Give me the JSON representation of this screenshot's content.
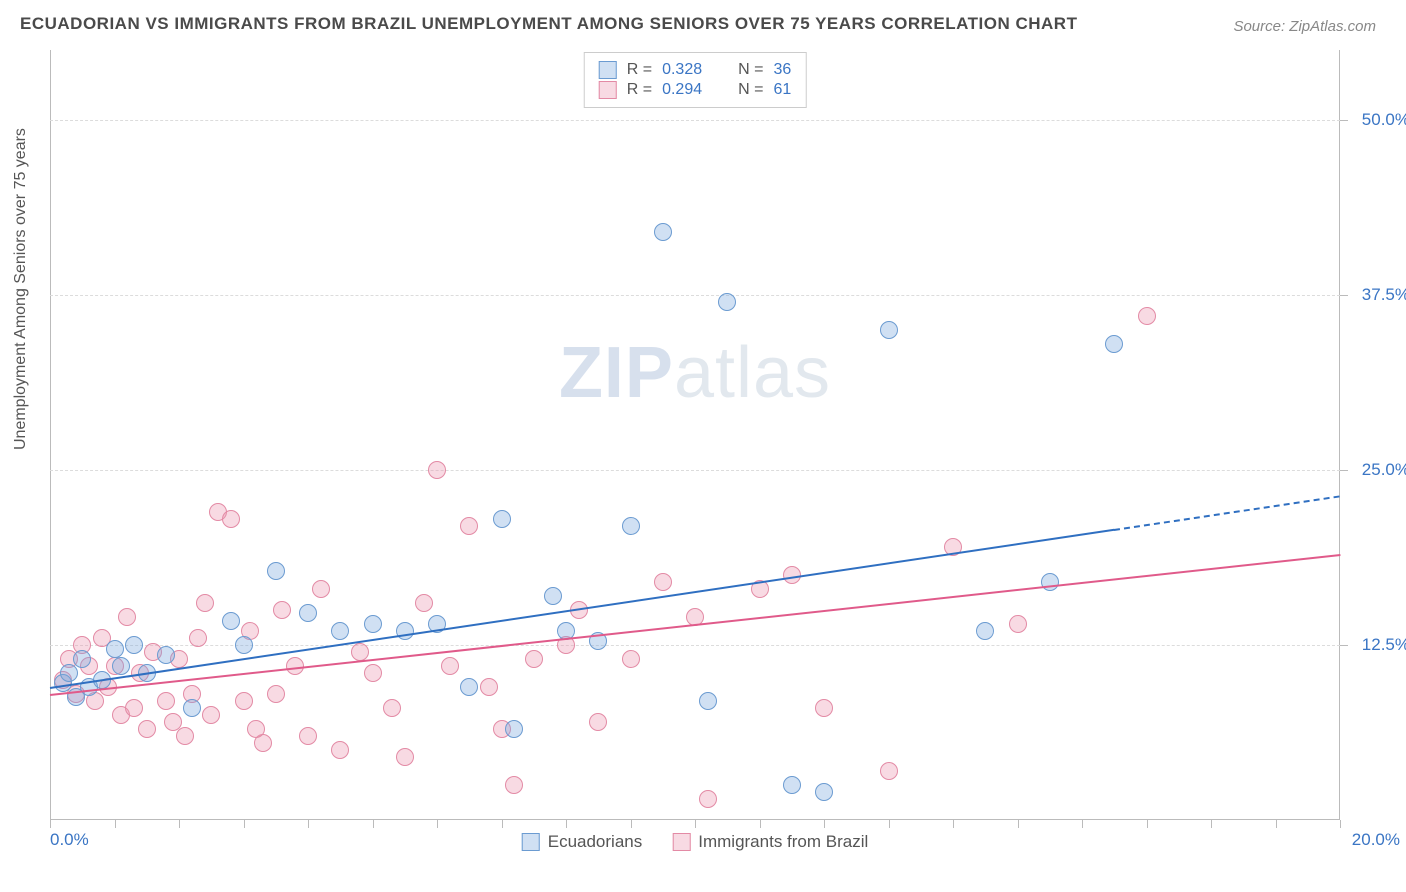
{
  "title": "ECUADORIAN VS IMMIGRANTS FROM BRAZIL UNEMPLOYMENT AMONG SENIORS OVER 75 YEARS CORRELATION CHART",
  "source": "Source: ZipAtlas.com",
  "ylabel": "Unemployment Among Seniors over 75 years",
  "watermark_a": "ZIP",
  "watermark_b": "atlas",
  "chart": {
    "type": "scatter",
    "xlim": [
      0,
      20
    ],
    "ylim": [
      0,
      55
    ],
    "x_origin_label": "0.0%",
    "x_end_label": "20.0%",
    "y_ticks": [
      12.5,
      25.0,
      37.5,
      50.0
    ],
    "y_tick_labels": [
      "12.5%",
      "25.0%",
      "37.5%",
      "50.0%"
    ],
    "x_minor_ticks": [
      0,
      1,
      2,
      3,
      4,
      5,
      6,
      7,
      8,
      9,
      10,
      11,
      12,
      13,
      14,
      15,
      16,
      17,
      18,
      19,
      20
    ],
    "grid_color": "#dcdcdc",
    "axis_color": "#bbbbbb",
    "background_color": "#ffffff",
    "series": [
      {
        "name": "Ecuadorians",
        "label": "Ecuadorians",
        "fill": "rgba(120,165,220,0.35)",
        "stroke": "#6b9bd1",
        "line_color": "#2f6fc1",
        "marker_radius": 9,
        "R": "0.328",
        "N": "36",
        "trend": {
          "x1": 0,
          "y1": 9.5,
          "x2": 16.5,
          "y2": 20.8,
          "x2_dash": 20,
          "y2_dash": 23.2
        },
        "points": [
          [
            0.2,
            9.8
          ],
          [
            0.3,
            10.5
          ],
          [
            0.4,
            8.8
          ],
          [
            0.5,
            11.5
          ],
          [
            0.6,
            9.5
          ],
          [
            0.8,
            10.0
          ],
          [
            1.0,
            12.2
          ],
          [
            1.1,
            11.0
          ],
          [
            1.3,
            12.5
          ],
          [
            1.5,
            10.5
          ],
          [
            1.8,
            11.8
          ],
          [
            2.2,
            8.0
          ],
          [
            2.8,
            14.2
          ],
          [
            3.0,
            12.5
          ],
          [
            3.5,
            17.8
          ],
          [
            4.0,
            14.8
          ],
          [
            4.5,
            13.5
          ],
          [
            5.0,
            14.0
          ],
          [
            5.5,
            13.5
          ],
          [
            6.0,
            14.0
          ],
          [
            6.5,
            9.5
          ],
          [
            7.0,
            21.5
          ],
          [
            7.2,
            6.5
          ],
          [
            7.8,
            16.0
          ],
          [
            8.0,
            13.5
          ],
          [
            8.5,
            12.8
          ],
          [
            9.0,
            21.0
          ],
          [
            9.5,
            42.0
          ],
          [
            10.2,
            8.5
          ],
          [
            10.5,
            37.0
          ],
          [
            12.0,
            2.0
          ],
          [
            13.0,
            35.0
          ],
          [
            14.5,
            13.5
          ],
          [
            15.5,
            17.0
          ],
          [
            16.5,
            34.0
          ],
          [
            11.5,
            2.5
          ]
        ]
      },
      {
        "name": "Immigrants from Brazil",
        "label": "Immigrants from Brazil",
        "fill": "rgba(235,150,175,0.35)",
        "stroke": "#e38aa5",
        "line_color": "#e05a8a",
        "marker_radius": 9,
        "R": "0.294",
        "N": "61",
        "trend": {
          "x1": 0,
          "y1": 9.0,
          "x2": 20,
          "y2": 19.0
        },
        "points": [
          [
            0.2,
            10.0
          ],
          [
            0.3,
            11.5
          ],
          [
            0.4,
            9.0
          ],
          [
            0.5,
            12.5
          ],
          [
            0.6,
            11.0
          ],
          [
            0.7,
            8.5
          ],
          [
            0.8,
            13.0
          ],
          [
            0.9,
            9.5
          ],
          [
            1.0,
            11.0
          ],
          [
            1.1,
            7.5
          ],
          [
            1.2,
            14.5
          ],
          [
            1.3,
            8.0
          ],
          [
            1.4,
            10.5
          ],
          [
            1.5,
            6.5
          ],
          [
            1.6,
            12.0
          ],
          [
            1.8,
            8.5
          ],
          [
            1.9,
            7.0
          ],
          [
            2.0,
            11.5
          ],
          [
            2.1,
            6.0
          ],
          [
            2.2,
            9.0
          ],
          [
            2.4,
            15.5
          ],
          [
            2.5,
            7.5
          ],
          [
            2.6,
            22.0
          ],
          [
            2.8,
            21.5
          ],
          [
            3.0,
            8.5
          ],
          [
            3.1,
            13.5
          ],
          [
            3.3,
            5.5
          ],
          [
            3.5,
            9.0
          ],
          [
            3.6,
            15.0
          ],
          [
            3.8,
            11.0
          ],
          [
            4.0,
            6.0
          ],
          [
            4.2,
            16.5
          ],
          [
            4.5,
            5.0
          ],
          [
            4.8,
            12.0
          ],
          [
            5.0,
            10.5
          ],
          [
            5.3,
            8.0
          ],
          [
            5.5,
            4.5
          ],
          [
            5.8,
            15.5
          ],
          [
            6.0,
            25.0
          ],
          [
            6.2,
            11.0
          ],
          [
            6.5,
            21.0
          ],
          [
            6.8,
            9.5
          ],
          [
            7.0,
            6.5
          ],
          [
            7.2,
            2.5
          ],
          [
            7.5,
            11.5
          ],
          [
            8.0,
            12.5
          ],
          [
            8.2,
            15.0
          ],
          [
            8.5,
            7.0
          ],
          [
            9.0,
            11.5
          ],
          [
            9.5,
            17.0
          ],
          [
            10.0,
            14.5
          ],
          [
            10.2,
            1.5
          ],
          [
            11.0,
            16.5
          ],
          [
            11.5,
            17.5
          ],
          [
            12.0,
            8.0
          ],
          [
            13.0,
            3.5
          ],
          [
            14.0,
            19.5
          ],
          [
            15.0,
            14.0
          ],
          [
            17.0,
            36.0
          ],
          [
            3.2,
            6.5
          ],
          [
            2.3,
            13.0
          ]
        ]
      }
    ]
  }
}
